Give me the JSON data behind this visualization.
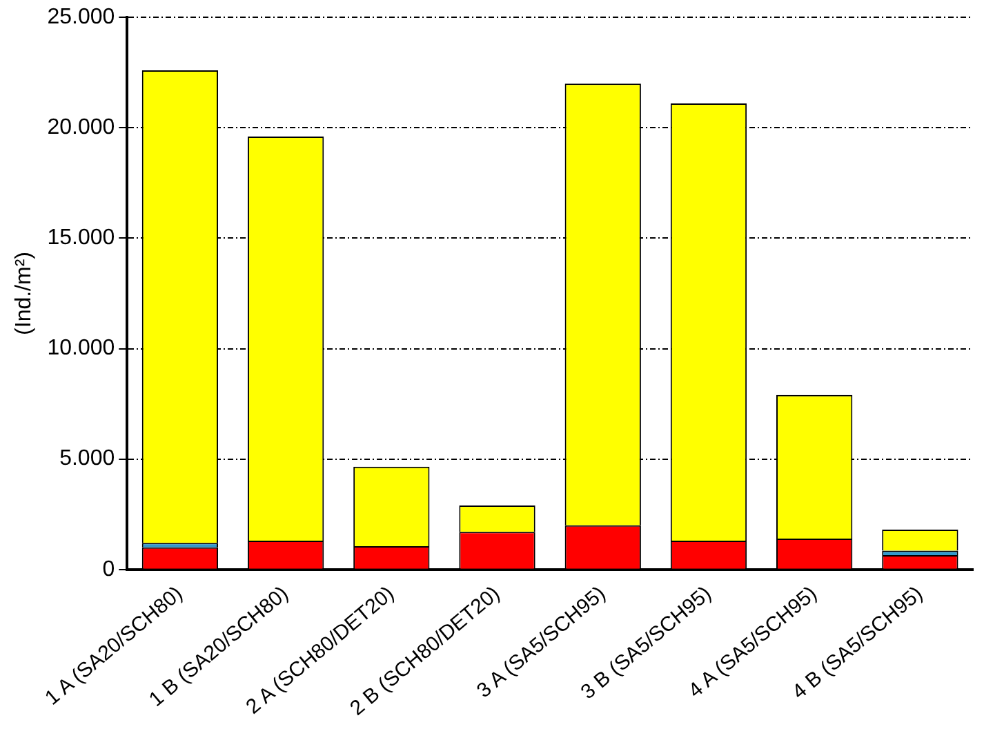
{
  "chart_data": {
    "type": "bar",
    "ylabel": "(Ind./m²)",
    "stacked": true,
    "grid": "y",
    "categories": [
      "1 A (SA20/SCH80)",
      "1 B (SA20/SCH80)",
      "2 A (SCH80/DET20)",
      "2 B (SCH80/DET20)",
      "3 A (SA5/SCH95)",
      "3 B (SA5/SCH95)",
      "4 A (SA5/SCH95)",
      "4 B (SA5/SCH95)"
    ],
    "series": [
      {
        "color": "#ff0000",
        "values": [
          1000,
          1300,
          1050,
          1700,
          2000,
          1300,
          1400,
          650
        ]
      },
      {
        "color": "#3399cc",
        "values": [
          200,
          null,
          null,
          null,
          null,
          null,
          null,
          200
        ]
      },
      {
        "color": "#ffff00",
        "values": [
          21400,
          18300,
          3600,
          1200,
          20000,
          19800,
          6500,
          950
        ]
      }
    ],
    "ylim": [
      0,
      25000
    ],
    "yticks": [
      {
        "value": 0,
        "label": "0"
      },
      {
        "value": 5000,
        "label": "5.000"
      },
      {
        "value": 10000,
        "label": "10.000"
      },
      {
        "value": 15000,
        "label": "15.000"
      },
      {
        "value": 20000,
        "label": "20.000"
      },
      {
        "value": 25000,
        "label": "25.000"
      }
    ]
  }
}
